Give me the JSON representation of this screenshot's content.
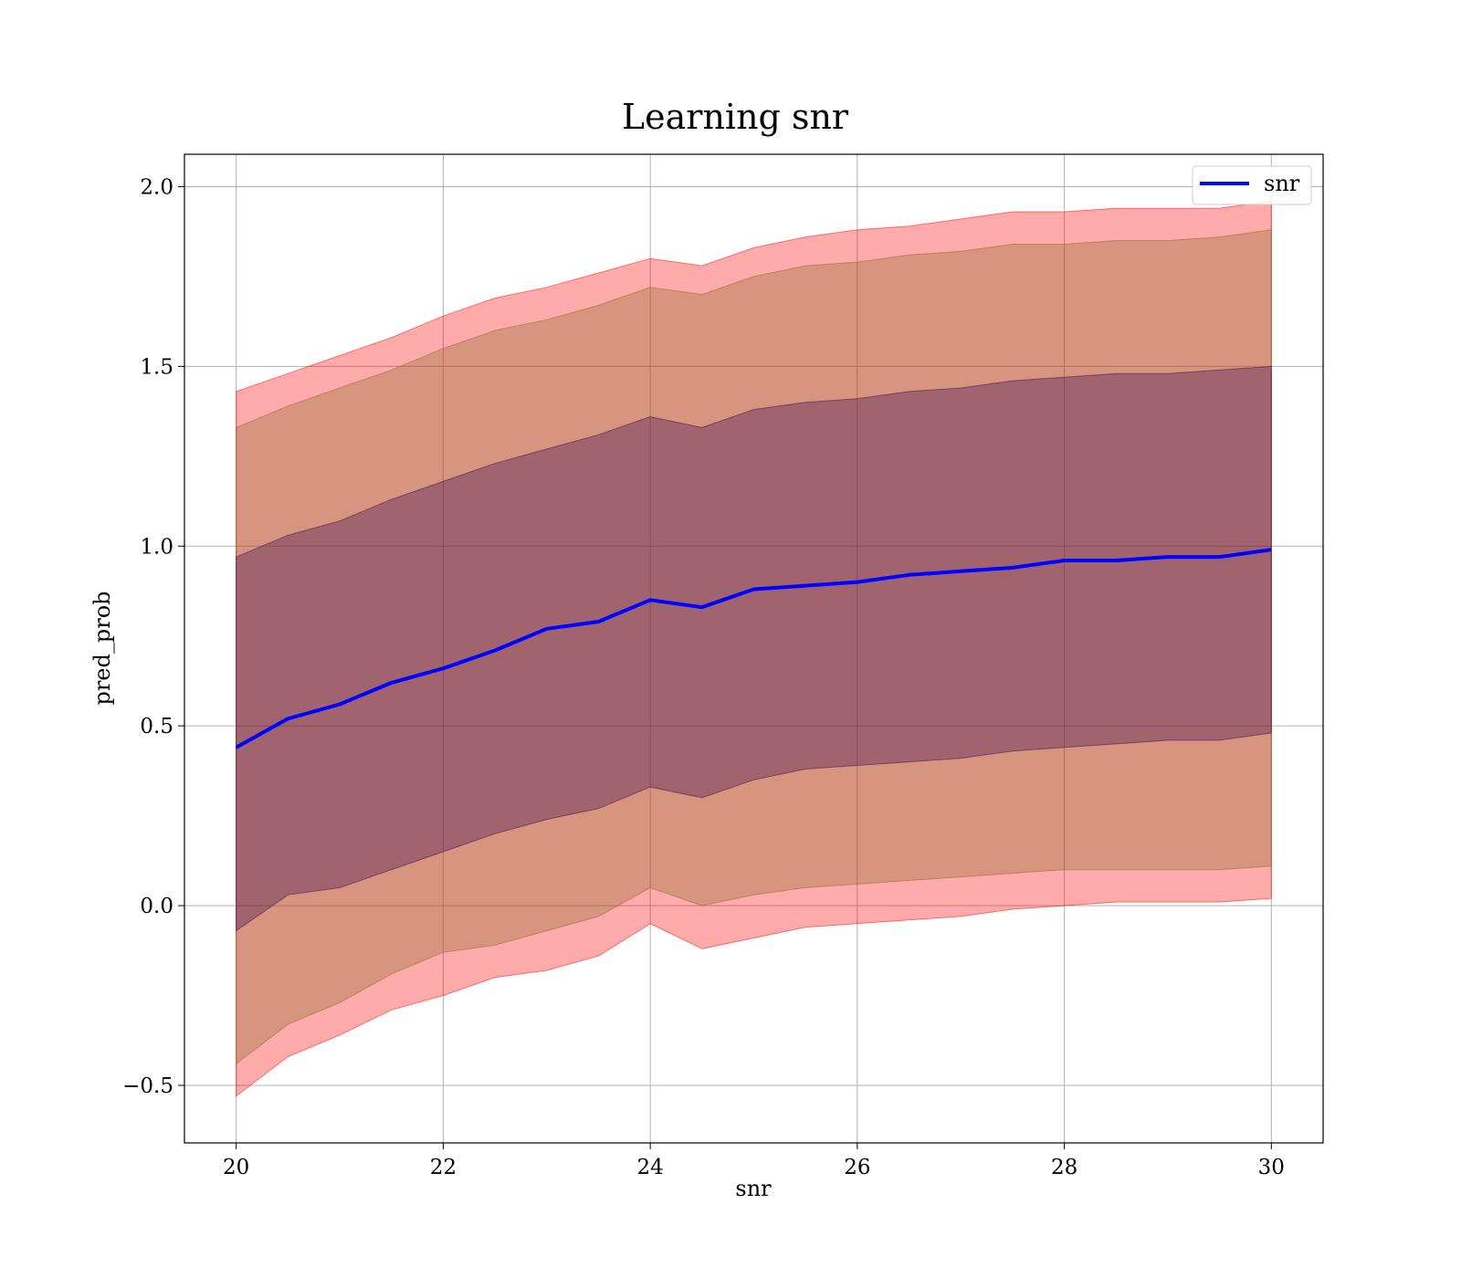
{
  "chart_data": {
    "type": "area",
    "title": "Learning snr",
    "xlabel": "snr",
    "ylabel": "pred_prob",
    "xlim": [
      19.5,
      30.5
    ],
    "ylim": [
      -0.66,
      2.09
    ],
    "x_ticks": [
      20,
      22,
      24,
      26,
      28,
      30
    ],
    "x_tick_labels": [
      "20",
      "22",
      "24",
      "26",
      "28",
      "30"
    ],
    "y_ticks": [
      -0.5,
      0.0,
      0.5,
      1.0,
      1.5,
      2.0
    ],
    "y_tick_labels": [
      "−0.5",
      "0.0",
      "0.5",
      "1.0",
      "1.5",
      "2.0"
    ],
    "grid": true,
    "legend": {
      "placement": "top-right",
      "entries": [
        "snr"
      ]
    },
    "x": [
      20,
      20.5,
      21,
      21.5,
      22,
      22.5,
      23,
      23.5,
      24,
      24.5,
      25,
      25.5,
      26,
      26.5,
      27,
      27.5,
      28,
      28.5,
      29,
      29.5,
      30
    ],
    "series": [
      {
        "name": "snr",
        "color": "#0000ff",
        "values": [
          0.44,
          0.52,
          0.56,
          0.62,
          0.66,
          0.71,
          0.77,
          0.79,
          0.85,
          0.83,
          0.88,
          0.89,
          0.9,
          0.92,
          0.93,
          0.94,
          0.96,
          0.96,
          0.97,
          0.97,
          0.99
        ]
      }
    ],
    "bands": [
      {
        "color": "#ff0000",
        "opacity": 0.33,
        "lower": [
          -0.53,
          -0.42,
          -0.36,
          -0.29,
          -0.25,
          -0.2,
          -0.18,
          -0.14,
          -0.05,
          -0.12,
          -0.09,
          -0.06,
          -0.05,
          -0.04,
          -0.03,
          -0.01,
          0.0,
          0.01,
          0.01,
          0.01,
          0.02
        ],
        "upper": [
          1.43,
          1.48,
          1.53,
          1.58,
          1.64,
          1.69,
          1.72,
          1.76,
          1.8,
          1.78,
          1.83,
          1.86,
          1.88,
          1.89,
          1.91,
          1.93,
          1.93,
          1.94,
          1.94,
          1.94,
          1.96
        ]
      },
      {
        "color": "#8b6b2c",
        "opacity": 0.35,
        "lower": [
          -0.44,
          -0.33,
          -0.27,
          -0.19,
          -0.13,
          -0.11,
          -0.07,
          -0.03,
          0.05,
          0.0,
          0.03,
          0.05,
          0.06,
          0.07,
          0.08,
          0.09,
          0.1,
          0.1,
          0.1,
          0.1,
          0.11
        ],
        "upper": [
          1.33,
          1.39,
          1.44,
          1.49,
          1.55,
          1.6,
          1.63,
          1.67,
          1.72,
          1.7,
          1.75,
          1.78,
          1.79,
          1.81,
          1.82,
          1.84,
          1.84,
          1.85,
          1.85,
          1.86,
          1.88
        ]
      },
      {
        "color": "#3d0a4c",
        "opacity": 0.35,
        "lower": [
          -0.07,
          0.03,
          0.05,
          0.1,
          0.15,
          0.2,
          0.24,
          0.27,
          0.33,
          0.3,
          0.35,
          0.38,
          0.39,
          0.4,
          0.41,
          0.43,
          0.44,
          0.45,
          0.46,
          0.46,
          0.48
        ],
        "upper": [
          0.97,
          1.03,
          1.07,
          1.13,
          1.18,
          1.23,
          1.27,
          1.31,
          1.36,
          1.33,
          1.38,
          1.4,
          1.41,
          1.43,
          1.44,
          1.46,
          1.47,
          1.48,
          1.48,
          1.49,
          1.5
        ]
      }
    ]
  }
}
